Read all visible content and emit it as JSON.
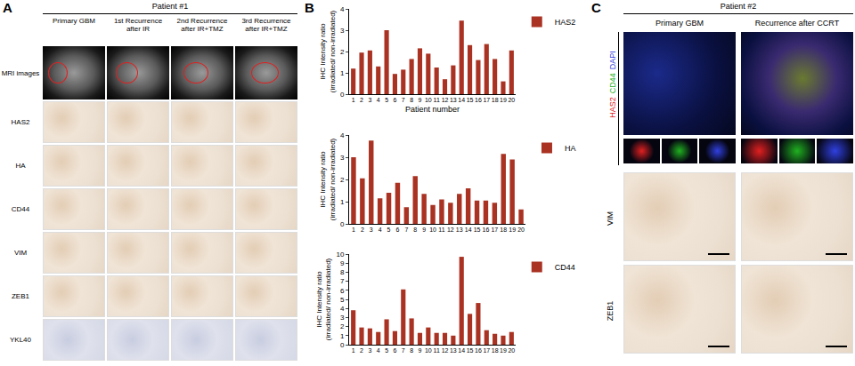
{
  "figure": {
    "panel_labels": [
      "A",
      "B",
      "C"
    ],
    "panel_a": {
      "patient": "Patient #1",
      "columns": [
        "Primary GBM",
        "1st Recurrence after IR",
        "2nd Recurrence after IR+TMZ",
        "3rd Recurrence after IR+TMZ"
      ],
      "rows": [
        "MRI images",
        "HAS2",
        "HA",
        "CD44",
        "VIM",
        "ZEB1",
        "YKL40"
      ]
    },
    "panel_c": {
      "patient": "Patient #2",
      "columns": [
        "Primary GBM",
        "Recurrence after CCRT"
      ],
      "stains": [
        {
          "name": "HAS2",
          "color": "#e02020"
        },
        {
          "name": "CD44",
          "color": "#20b020"
        },
        {
          "name": "DAPI",
          "color": "#3040e0"
        }
      ],
      "rows": [
        "VIM",
        "ZEB1"
      ]
    }
  },
  "chart_data": [
    {
      "type": "bar",
      "categories": [
        "1",
        "2",
        "3",
        "4",
        "5",
        "6",
        "7",
        "8",
        "9",
        "10",
        "11",
        "12",
        "13",
        "14",
        "15",
        "16",
        "17",
        "18",
        "19",
        "20"
      ],
      "series": [
        {
          "name": "HAS2",
          "color": "#a93222",
          "values": [
            1.2,
            1.95,
            2.05,
            1.3,
            3.0,
            0.95,
            1.15,
            1.65,
            2.15,
            1.9,
            1.25,
            0.7,
            1.35,
            3.45,
            2.3,
            1.6,
            2.35,
            1.65,
            0.6,
            2.05
          ]
        }
      ],
      "x_label": "Patient number",
      "y_label": [
        "IHC Intensity ratio",
        "(irradiated/ non-irradiated)"
      ],
      "ylim": [
        0,
        4
      ],
      "yticks": [
        0,
        1,
        2,
        3,
        4
      ],
      "legend": "upper right",
      "grid": false
    },
    {
      "type": "bar",
      "categories": [
        "1",
        "2",
        "3",
        "4",
        "5",
        "6",
        "7",
        "8",
        "9",
        "10",
        "11",
        "12",
        "13",
        "14",
        "15",
        "16",
        "17",
        "18",
        "19",
        "20"
      ],
      "series": [
        {
          "name": "HA",
          "color": "#a93222",
          "values": [
            3.0,
            2.05,
            3.75,
            1.15,
            1.4,
            1.85,
            0.75,
            2.15,
            1.35,
            0.85,
            1.1,
            0.95,
            1.35,
            1.6,
            1.05,
            1.05,
            0.95,
            3.15,
            2.9,
            0.65
          ]
        }
      ],
      "y_label": [
        "IHC Intensity ratio",
        "(irradiated/ non-irradiated)"
      ],
      "ylim": [
        0,
        4
      ],
      "yticks": [
        0,
        1,
        2,
        3,
        4
      ],
      "legend": "upper right",
      "grid": false
    },
    {
      "type": "bar",
      "categories": [
        "1",
        "2",
        "3",
        "4",
        "5",
        "6",
        "7",
        "8",
        "9",
        "10",
        "11",
        "12",
        "13",
        "14",
        "15",
        "16",
        "17",
        "18",
        "19",
        "20"
      ],
      "series": [
        {
          "name": "CD44",
          "color": "#a93222",
          "values": [
            3.8,
            1.9,
            1.8,
            1.4,
            2.8,
            1.5,
            6.1,
            2.9,
            1.3,
            1.9,
            1.3,
            1.3,
            1.0,
            9.7,
            3.4,
            4.6,
            1.6,
            1.2,
            1.0,
            1.4
          ]
        }
      ],
      "y_label": [
        "IHC Intensity ratio",
        "(irradiated/ non-irradiated)"
      ],
      "ylim": [
        0,
        10
      ],
      "yticks": [
        0,
        1,
        2,
        3,
        4,
        5,
        6,
        7,
        8,
        9,
        10
      ],
      "legend": "upper right",
      "grid": false
    }
  ]
}
